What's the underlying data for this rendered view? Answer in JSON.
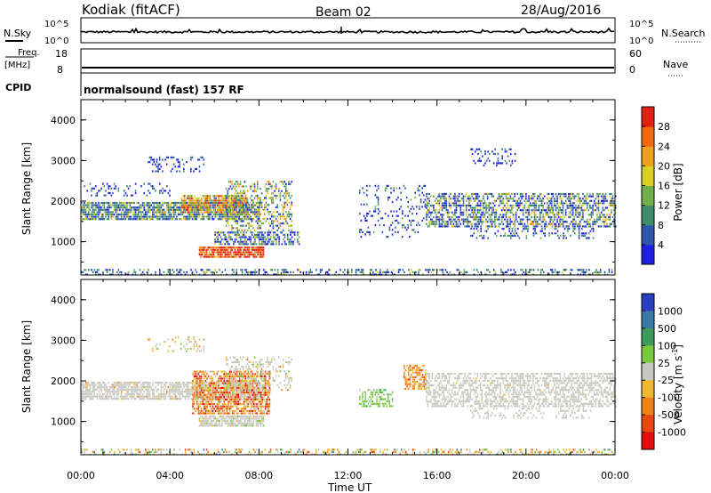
{
  "header": {
    "station": "Kodiak (fitACF)",
    "beam": "Beam 02",
    "date": "28/Aug/2016"
  },
  "info_panels": {
    "nsky_label": "N.Sky",
    "nsearch_label": "N.Search",
    "noise_ticks": [
      "10^5",
      "10^0"
    ],
    "freq_label": "Freq.",
    "freq_unit": "[MHz]",
    "freq_ticks": [
      "18",
      "8"
    ],
    "nave_label": "Nave",
    "nave_ticks": [
      "60",
      "0"
    ],
    "cpid_label": "CPID",
    "cpid_value": "normalsound (fast) 157 RF"
  },
  "axes": {
    "ylabel": "Slant Range [km]",
    "xlabel": "Time UT",
    "y_ticks": [
      "1000",
      "2000",
      "3000",
      "4000"
    ],
    "x_ticks": [
      "00:00",
      "04:00",
      "08:00",
      "12:00",
      "16:00",
      "20:00",
      "00:00"
    ]
  },
  "colorbars": {
    "power": {
      "label": "Power [dB]",
      "ticks": [
        "4",
        "8",
        "12",
        "16",
        "20",
        "24",
        "28"
      ],
      "colors": [
        "#1f1fe0",
        "#2e58b0",
        "#3e8c6a",
        "#6fb04c",
        "#d8d024",
        "#f0a018",
        "#f06a10",
        "#e02010"
      ]
    },
    "velocity": {
      "label": "Velocity [m s",
      "label_exp": "-1",
      "label_end": "]",
      "ticks": [
        "1000",
        "500",
        "100",
        "25",
        "-25",
        "-100",
        "-500",
        "-1000"
      ],
      "colors": [
        "#2840c0",
        "#3a78a8",
        "#3e9a5a",
        "#78c840",
        "#c8c8c0",
        "#f0b830",
        "#f08018",
        "#e84810",
        "#e01010"
      ]
    }
  },
  "chart_data": [
    {
      "type": "heatmap",
      "panel": "power",
      "x_range_hours": [
        0,
        24
      ],
      "y_range_km": [
        180,
        4500
      ],
      "regions": [
        {
          "t0": 0.0,
          "t1": 8.0,
          "r0": 1580,
          "r1": 1980,
          "value": "mixed 4-28 dB"
        },
        {
          "t0": 4.5,
          "t1": 7.8,
          "r0": 1500,
          "r1": 2250,
          "value": "16-28 dB"
        },
        {
          "t0": 5.3,
          "t1": 8.2,
          "r0": 600,
          "r1": 900,
          "value": "28 dB"
        },
        {
          "t0": 6.0,
          "t1": 10.0,
          "r0": 950,
          "r1": 1250,
          "value": "8-24 dB"
        },
        {
          "t0": 6.5,
          "t1": 9.5,
          "r0": 1800,
          "r1": 2600,
          "value": "4-20 dB"
        },
        {
          "t0": 3.0,
          "t1": 5.5,
          "r0": 2800,
          "r1": 3100,
          "value": "4-12 dB"
        },
        {
          "t0": 15.5,
          "t1": 24.0,
          "r0": 1350,
          "r1": 2200,
          "value": "4-24 dB"
        },
        {
          "t0": 12.5,
          "t1": 15.5,
          "r0": 1100,
          "r1": 2400,
          "value": "4-12 dB"
        },
        {
          "t0": 0.0,
          "t1": 24.0,
          "r0": 180,
          "r1": 350,
          "value": "4-16 dB"
        }
      ]
    },
    {
      "type": "heatmap",
      "panel": "velocity",
      "x_range_hours": [
        0,
        24
      ],
      "y_range_km": [
        180,
        4500
      ],
      "regions": [
        {
          "t0": 0.0,
          "t1": 8.0,
          "r0": 1580,
          "r1": 1980,
          "value": "-25 to 25 m/s"
        },
        {
          "t0": 5.0,
          "t1": 8.5,
          "r0": 1200,
          "r1": 2200,
          "value": "-100 to -1000 m/s"
        },
        {
          "t0": 5.3,
          "t1": 8.2,
          "r0": 900,
          "r1": 1150,
          "value": "-25 to 25 m/s"
        },
        {
          "t0": 12.5,
          "t1": 14.0,
          "r0": 1400,
          "r1": 1800,
          "value": "100 m/s"
        },
        {
          "t0": 14.5,
          "t1": 15.5,
          "r0": 1800,
          "r1": 2400,
          "value": "-500 m/s"
        },
        {
          "t0": 15.5,
          "t1": 24.0,
          "r0": 1350,
          "r1": 2200,
          "value": "-25 to 25 m/s"
        },
        {
          "t0": 0.0,
          "t1": 24.0,
          "r0": 180,
          "r1": 350,
          "value": "mixed"
        }
      ]
    }
  ]
}
